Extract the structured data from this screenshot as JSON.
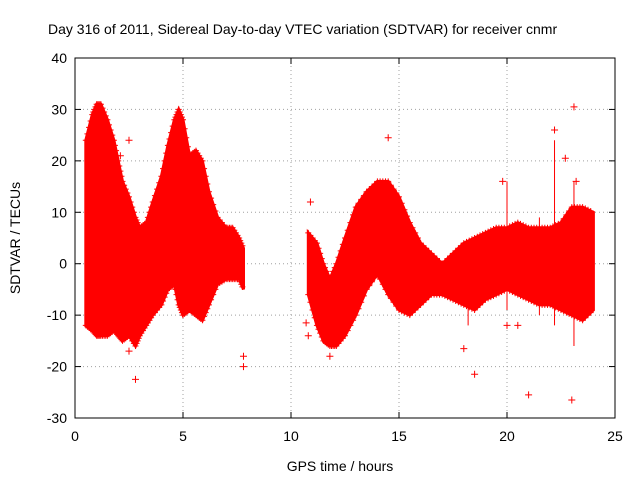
{
  "chart_data": {
    "type": "scatter",
    "title": "Day 316 of 2011, Sidereal Day-to-day VTEC variation (SDTVAR) for receiver cnmr",
    "xlabel": "GPS time / hours",
    "ylabel": "SDTVAR / TECUs",
    "xlim": [
      0,
      25
    ],
    "ylim": [
      -30,
      40
    ],
    "xticks": [
      0,
      5,
      10,
      15,
      20,
      25
    ],
    "yticks": [
      -30,
      -20,
      -10,
      0,
      10,
      20,
      30,
      40
    ],
    "grid": true,
    "marker": "+",
    "color": "#ff0000",
    "envelope": {
      "description": "dense band of points (min/max per time sample)",
      "segments": [
        {
          "x": [
            0.5,
            0.8,
            1.0,
            1.2,
            1.5,
            1.8,
            2.0,
            2.2,
            2.5,
            2.8,
            3.0,
            3.3,
            3.6,
            4.0,
            4.3,
            4.6,
            4.8,
            5.0,
            5.3,
            5.6,
            5.9,
            6.2,
            6.6,
            7.0,
            7.3,
            7.6,
            7.8
          ],
          "ymax": [
            24,
            29,
            31,
            31,
            28,
            24,
            20,
            16,
            13,
            9,
            7,
            8,
            12,
            17,
            23,
            28,
            30,
            28,
            21,
            22,
            20,
            14,
            9,
            7,
            7,
            5,
            3
          ],
          "ymin": [
            -12,
            -13,
            -14,
            -14,
            -14,
            -13,
            -14,
            -15,
            -14,
            -16,
            -14,
            -12,
            -10,
            -8,
            -5,
            -4,
            -8,
            -10,
            -9,
            -10,
            -11,
            -8,
            -4,
            -3,
            -3,
            -3,
            -5
          ]
        },
        {
          "x": [
            10.8,
            11.2,
            11.5,
            11.8,
            12.1,
            12.5,
            13.0,
            13.5,
            14.0,
            14.5,
            15.0,
            15.5,
            16.0,
            16.5,
            17.0,
            17.5,
            18.0,
            18.5,
            19.0,
            19.5,
            20.0,
            20.5,
            21.0,
            21.5,
            22.0,
            22.5,
            23.0,
            23.5,
            24.0
          ],
          "ymax": [
            6,
            4,
            0,
            -3,
            0,
            5,
            11,
            14,
            16,
            16,
            13,
            8,
            4,
            2,
            0,
            2,
            4,
            5,
            6,
            7,
            7,
            8,
            7,
            7,
            7,
            8,
            11,
            11,
            10
          ],
          "ymin": [
            -6,
            -12,
            -15,
            -16,
            -16,
            -14,
            -10,
            -5,
            -2,
            -6,
            -9,
            -10,
            -8,
            -6,
            -6,
            -7,
            -8,
            -9,
            -7,
            -6,
            -5,
            -6,
            -7,
            -8,
            -8,
            -9,
            -10,
            -11,
            -9
          ]
        }
      ]
    },
    "outliers": [
      {
        "x": 2.1,
        "y": 21
      },
      {
        "x": 2.5,
        "y": 24
      },
      {
        "x": 2.5,
        "y": -17
      },
      {
        "x": 2.8,
        "y": -22.5
      },
      {
        "x": 7.8,
        "y": -18
      },
      {
        "x": 7.8,
        "y": -20
      },
      {
        "x": 10.7,
        "y": -11.5
      },
      {
        "x": 10.8,
        "y": -14
      },
      {
        "x": 10.9,
        "y": 12
      },
      {
        "x": 11.8,
        "y": -18
      },
      {
        "x": 14.5,
        "y": 24.5
      },
      {
        "x": 18.0,
        "y": -16.5
      },
      {
        "x": 18.5,
        "y": -21.5
      },
      {
        "x": 19.8,
        "y": 16
      },
      {
        "x": 20.0,
        "y": -12
      },
      {
        "x": 20.5,
        "y": -12
      },
      {
        "x": 21.0,
        "y": -25.5
      },
      {
        "x": 22.2,
        "y": 26
      },
      {
        "x": 22.7,
        "y": 20.5
      },
      {
        "x": 23.1,
        "y": 30.5
      },
      {
        "x": 23.0,
        "y": -26.5
      },
      {
        "x": 23.2,
        "y": 16
      }
    ]
  }
}
